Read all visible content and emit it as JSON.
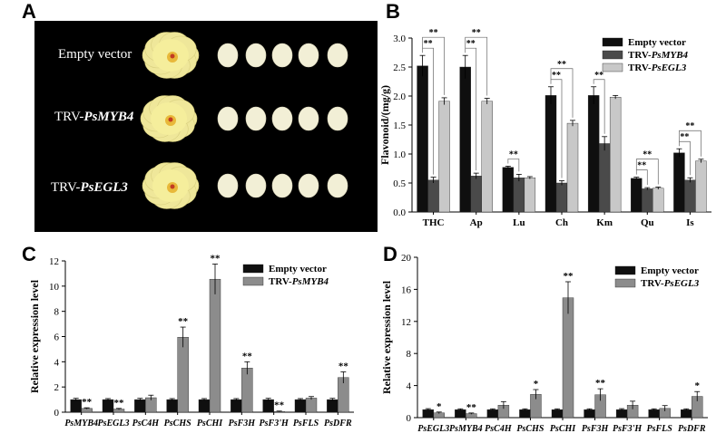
{
  "panels": {
    "A": "A",
    "B": "B",
    "C": "C",
    "D": "D"
  },
  "photo_panel": {
    "rows": [
      {
        "label": "Empty vector",
        "gene": ""
      },
      {
        "label": "TRV-",
        "gene": "PsMYB4"
      },
      {
        "label": "TRV-",
        "gene": "PsEGL3"
      }
    ]
  },
  "colors": {
    "empty": "#0f0f0f",
    "myb4": "#4a4a4a",
    "egl3": "#c8c8c8",
    "trv_gray": "#8c8c8c",
    "petal": "#f2efd6",
    "flower": "#efe79a"
  },
  "chart_data": [
    {
      "id": "B",
      "type": "bar",
      "categories": [
        "THC",
        "Ap",
        "Lu",
        "Ch",
        "Km",
        "Qu",
        "Is"
      ],
      "ylabel": "Flavonoid/(mg/g)",
      "ylim": [
        0,
        3.0
      ],
      "yticks": [
        "0.0",
        "0.5",
        "1.0",
        "1.5",
        "2.0",
        "2.5",
        "3.0"
      ],
      "series": [
        {
          "name": "Empty vector",
          "values": [
            2.52,
            2.5,
            0.77,
            2.01,
            2.01,
            0.58,
            1.02
          ],
          "errors": [
            0.18,
            0.2,
            0.02,
            0.15,
            0.15,
            0.02,
            0.07
          ]
        },
        {
          "name": "TRV-PsMYB4",
          "values": [
            0.55,
            0.62,
            0.59,
            0.5,
            1.18,
            0.4,
            0.55
          ],
          "errors": [
            0.05,
            0.05,
            0.06,
            0.04,
            0.12,
            0.02,
            0.04
          ]
        },
        {
          "name": "TRV-PsEGL3",
          "values": [
            1.91,
            1.91,
            0.59,
            1.53,
            1.98,
            0.41,
            0.88
          ],
          "errors": [
            0.06,
            0.05,
            0.02,
            0.05,
            0.03,
            0.02,
            0.03
          ]
        }
      ],
      "legend": [
        "Empty vector",
        "TRV-",
        "TRV-"
      ],
      "legend_genes": [
        "",
        "PsMYB4",
        "PsEGL3"
      ],
      "significance": "**",
      "legend_position": "top-right"
    },
    {
      "id": "C",
      "type": "bar",
      "categories": [
        "PsMYB4",
        "PsEGL3",
        "PsC4H",
        "PsCHS",
        "PsCHI",
        "PsF3H",
        "PsF3'H",
        "PsFLS",
        "PsDFR"
      ],
      "ylabel": "Relative expression level",
      "ylim": [
        0,
        12
      ],
      "yticks": [
        "0",
        "2",
        "4",
        "6",
        "8",
        "10",
        "12"
      ],
      "series": [
        {
          "name": "Empty vector",
          "values": [
            1,
            1,
            1,
            1,
            1,
            1,
            1,
            1,
            1
          ],
          "errors": [
            0.1,
            0.08,
            0.1,
            0.08,
            0.08,
            0.08,
            0.1,
            0.08,
            0.1
          ]
        },
        {
          "name": "TRV-PsMYB4",
          "values": [
            0.3,
            0.25,
            1.15,
            5.95,
            10.55,
            3.5,
            0.06,
            1.12,
            2.75
          ],
          "errors": [
            0.05,
            0.05,
            0.2,
            0.8,
            1.2,
            0.5,
            0.03,
            0.12,
            0.45
          ]
        }
      ],
      "legend": [
        "Empty vector",
        "TRV-"
      ],
      "legend_genes": [
        "",
        "PsMYB4"
      ],
      "stars": [
        "**",
        "**",
        "",
        "**",
        "**",
        "**",
        "**",
        "",
        "**"
      ],
      "legend_position": "top-right"
    },
    {
      "id": "D",
      "type": "bar",
      "categories": [
        "PsEGL3",
        "PsMYB4",
        "PsC4H",
        "PsCHS",
        "PsCHI",
        "PsF3H",
        "PsF3'H",
        "PsFLS",
        "PsDFR"
      ],
      "ylabel": "Relative expression level",
      "ylim": [
        0,
        20
      ],
      "yticks": [
        "0",
        "4",
        "8",
        "12",
        "16",
        "20"
      ],
      "series": [
        {
          "name": "Empty vector",
          "values": [
            1,
            1,
            1,
            1,
            1,
            1,
            1,
            1,
            1
          ],
          "errors": [
            0.12,
            0.1,
            0.1,
            0.1,
            0.1,
            0.1,
            0.12,
            0.1,
            0.1
          ]
        },
        {
          "name": "TRV-PsEGL3",
          "values": [
            0.6,
            0.5,
            1.55,
            2.9,
            14.95,
            2.85,
            1.55,
            1.15,
            2.65
          ],
          "errors": [
            0.1,
            0.08,
            0.45,
            0.6,
            2.0,
            0.75,
            0.5,
            0.35,
            0.6
          ]
        }
      ],
      "legend": [
        "Empty vector",
        "TRV-"
      ],
      "legend_genes": [
        "",
        "PsEGL3"
      ],
      "stars": [
        "*",
        "**",
        "",
        "*",
        "**",
        "**",
        "",
        "",
        "*"
      ],
      "legend_position": "top-right"
    }
  ]
}
